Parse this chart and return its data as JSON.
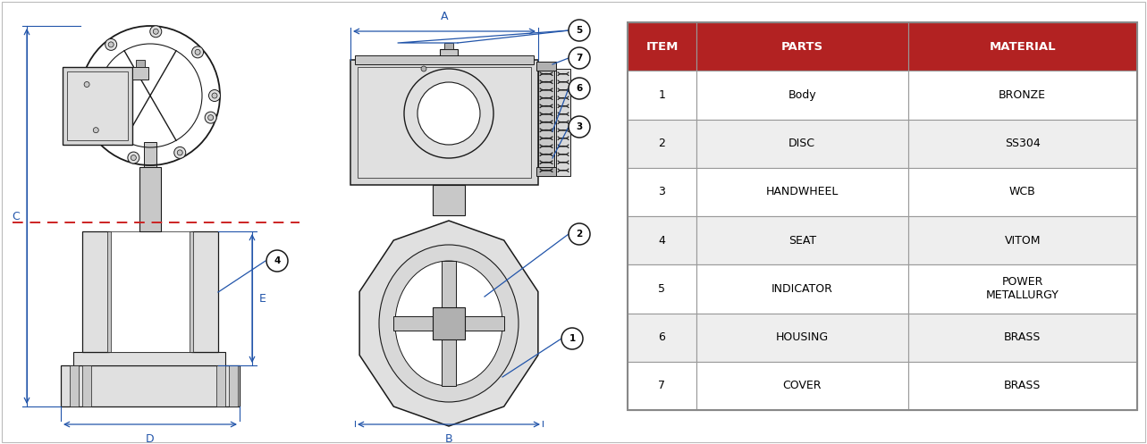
{
  "table_headers": [
    "ITEM",
    "PARTS",
    "MATERIAL"
  ],
  "table_data": [
    [
      "1",
      "Body",
      "BRONZE"
    ],
    [
      "2",
      "DISC",
      "SS304"
    ],
    [
      "3",
      "HANDWHEEL",
      "WCB"
    ],
    [
      "4",
      "SEAT",
      "VITOM"
    ],
    [
      "5",
      "INDICATOR",
      "POWER\nMETALLURGY"
    ],
    [
      "6",
      "HOUSING",
      "BRASS"
    ],
    [
      "7",
      "COVER",
      "BRASS"
    ]
  ],
  "header_bg": "#B22222",
  "header_fg": "#FFFFFF",
  "row_bg_even": "#FFFFFF",
  "row_bg_odd": "#EEEEEE",
  "bg_color": "#FFFFFF",
  "line_color": "#1a1a1a",
  "blue_color": "#2255aa",
  "red_color": "#CC2222",
  "gray1": "#c8c8c8",
  "gray2": "#e0e0e0",
  "gray3": "#b0b0b0",
  "gray4": "#d8d8d8"
}
